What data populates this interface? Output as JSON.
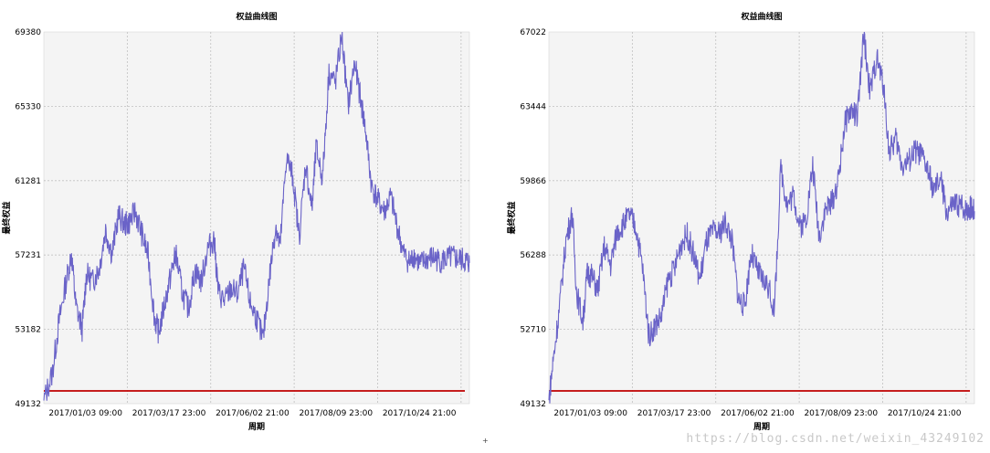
{
  "chart_data": [
    {
      "type": "line",
      "title": "权益曲线图",
      "xlabel": "周期",
      "ylabel": "最终权益",
      "ylim": [
        49132,
        69380
      ],
      "yticks": [
        "49132",
        "53182",
        "57231",
        "61281",
        "65330",
        "69380"
      ],
      "xticks": [
        "2017/01/03 09:00",
        "2017/03/17 23:00",
        "2017/06/02 21:00",
        "2017/08/09 23:00",
        "2017/10/24 21:00"
      ],
      "grid": true,
      "series": [
        {
          "color": "#6a63c8",
          "x_fraction": [
            0.0,
            0.02,
            0.035,
            0.05,
            0.065,
            0.075,
            0.09,
            0.1,
            0.115,
            0.13,
            0.145,
            0.16,
            0.175,
            0.19,
            0.2,
            0.215,
            0.23,
            0.245,
            0.26,
            0.27,
            0.285,
            0.3,
            0.31,
            0.325,
            0.34,
            0.355,
            0.37,
            0.385,
            0.4,
            0.41,
            0.425,
            0.44,
            0.455,
            0.47,
            0.485,
            0.5,
            0.515,
            0.53,
            0.545,
            0.555,
            0.57,
            0.585,
            0.6,
            0.615,
            0.63,
            0.64,
            0.655,
            0.67,
            0.685,
            0.7,
            0.715,
            0.73,
            0.745,
            0.755,
            0.77,
            0.785,
            0.8,
            0.815,
            0.83,
            0.845,
            0.86,
            0.87,
            0.885,
            0.9,
            0.915,
            0.93,
            0.945,
            0.96,
            0.975,
            0.99,
            1.0
          ],
          "values": [
            49300,
            50800,
            53500,
            55500,
            57300,
            54500,
            53200,
            56200,
            55800,
            56500,
            58600,
            57300,
            59400,
            58900,
            59000,
            59600,
            58400,
            57200,
            53800,
            53000,
            54700,
            56300,
            57300,
            55200,
            54300,
            56400,
            55800,
            57600,
            58100,
            55200,
            54700,
            55400,
            55100,
            56500,
            54600,
            53800,
            52600,
            56000,
            58900,
            57600,
            62600,
            61500,
            58200,
            62200,
            59700,
            63100,
            61400,
            67200,
            66600,
            69200,
            65300,
            67700,
            65600,
            64200,
            61000,
            60200,
            59600,
            60400,
            58800,
            57300,
            56800,
            57200,
            56700,
            57000,
            57100,
            56900,
            57000,
            57100,
            57000,
            56900,
            56800
          ]
        }
      ],
      "baseline": {
        "color": "#c00000",
        "value": 49132
      }
    },
    {
      "type": "line",
      "title": "权益曲线图",
      "xlabel": "周期",
      "ylabel": "最终权益",
      "ylim": [
        49132,
        67022
      ],
      "yticks": [
        "49132",
        "52710",
        "56288",
        "59866",
        "63444",
        "67022"
      ],
      "xticks": [
        "2017/01/03 09:00",
        "2017/03/17 23:00",
        "2017/06/02 21:00",
        "2017/08/09 23:00",
        "2017/10/24 21:00"
      ],
      "grid": true,
      "series": [
        {
          "color": "#6a63c8",
          "x_fraction": [
            0.0,
            0.01,
            0.025,
            0.04,
            0.055,
            0.065,
            0.08,
            0.09,
            0.1,
            0.115,
            0.13,
            0.145,
            0.16,
            0.175,
            0.19,
            0.205,
            0.22,
            0.235,
            0.25,
            0.265,
            0.28,
            0.295,
            0.31,
            0.325,
            0.34,
            0.355,
            0.37,
            0.385,
            0.4,
            0.415,
            0.43,
            0.445,
            0.46,
            0.475,
            0.49,
            0.5,
            0.515,
            0.53,
            0.545,
            0.56,
            0.575,
            0.59,
            0.605,
            0.62,
            0.635,
            0.65,
            0.665,
            0.68,
            0.695,
            0.71,
            0.725,
            0.74,
            0.755,
            0.77,
            0.785,
            0.8,
            0.815,
            0.83,
            0.845,
            0.86,
            0.875,
            0.89,
            0.905,
            0.92,
            0.935,
            0.95,
            0.965,
            0.98,
            0.99,
            1.0
          ],
          "values": [
            49300,
            51200,
            53800,
            57000,
            58300,
            54500,
            53100,
            55400,
            55300,
            54600,
            56700,
            55800,
            57400,
            57800,
            58200,
            57600,
            55700,
            52400,
            52900,
            53400,
            55100,
            55600,
            56800,
            57300,
            56300,
            55100,
            56900,
            57400,
            57300,
            57900,
            57000,
            54200,
            53800,
            56400,
            55500,
            55200,
            54800,
            53600,
            60500,
            58700,
            59200,
            57600,
            58100,
            60600,
            57200,
            58500,
            58800,
            59900,
            62600,
            63300,
            62900,
            66900,
            64100,
            65800,
            64600,
            61200,
            61900,
            60600,
            60800,
            61300,
            61100,
            60400,
            59300,
            60000,
            58300,
            58700,
            58700,
            58500,
            58600,
            58400
          ]
        }
      ],
      "baseline": {
        "color": "#c00000",
        "value": 49132
      }
    }
  ],
  "watermark": "https://blog.csdn.net/weixin_43249102",
  "cursor_mark": "+"
}
